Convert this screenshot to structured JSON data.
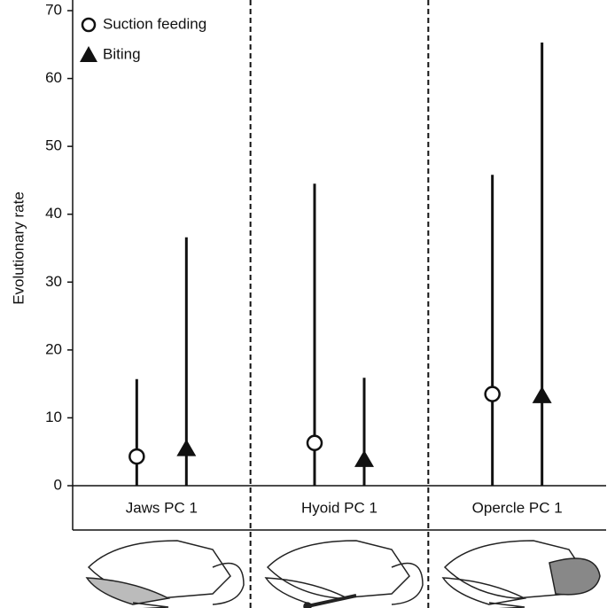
{
  "chart_data": {
    "type": "errorpoint",
    "y_label": "Evolutionary rate",
    "categories": [
      "Jaws PC 1",
      "Hyoid PC 1",
      "Opercle PC 1"
    ],
    "series": [
      {
        "name": "Suction feeding",
        "marker": "circle",
        "color": "#111111",
        "values": [
          4.3,
          6.3,
          13.5
        ],
        "lower": [
          0,
          0,
          0
        ],
        "upper": [
          15.7,
          44.5,
          45.8
        ]
      },
      {
        "name": "Biting",
        "marker": "triangle",
        "color": "#111111",
        "values": [
          5.4,
          3.8,
          13.2
        ],
        "lower": [
          0,
          0,
          0
        ],
        "upper": [
          36.6,
          15.9,
          65.3
        ]
      }
    ],
    "ylim": [
      0,
      70
    ],
    "yticks": [
      0,
      10,
      20,
      30,
      40,
      50,
      60,
      70
    ],
    "legend": "upper-left"
  }
}
